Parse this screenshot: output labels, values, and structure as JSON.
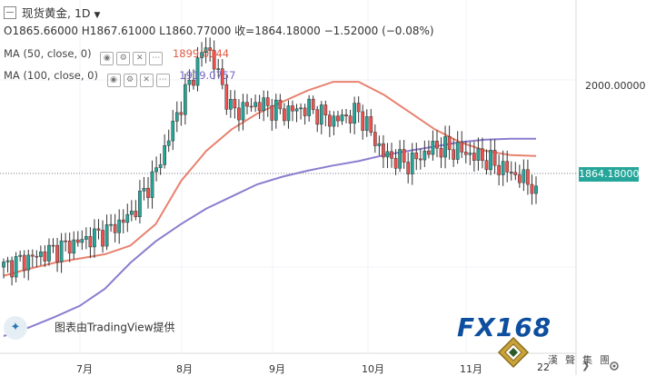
{
  "header": {
    "title": "现货黄金, 1D",
    "ohlc": "O1865.66000  H1867.61000  L1860.77000  收=1864.18000   −1.52000 (−0.08%)"
  },
  "indicators": [
    {
      "label": "MA (50, close, 0)",
      "value": "1899.0144",
      "color": "#e8826f"
    },
    {
      "label": "MA (100, close, 0)",
      "value": "1919.0757",
      "color": "#8c7ccf"
    }
  ],
  "price_axis": {
    "level_label": "2000.00000",
    "last_price": "1864.18000"
  },
  "time_axis": {
    "months": [
      "7月",
      "8月",
      "9月",
      "10月",
      "11月",
      "22"
    ]
  },
  "credit": "图表由TradingView提供",
  "watermark": {
    "brand": "FX168",
    "subtitle": "漢聲集團"
  },
  "colors": {
    "up": "#26a69a",
    "down": "#ef5350",
    "ma50": "#e8826f",
    "ma100": "#8c7ccf",
    "last_price": "#26a69a"
  },
  "chart_data": {
    "type": "line",
    "title": "现货黄金, 1D",
    "ylim": [
      1670,
      2080
    ],
    "grid": true,
    "series": [
      {
        "name": "MA (50, close, 0)",
        "values": [
          1760,
          1768,
          1775,
          1780,
          1785,
          1795,
          1820,
          1870,
          1905,
          1930,
          1948,
          1962,
          1975,
          1985,
          1985,
          1970,
          1950,
          1930,
          1915,
          1905,
          1900,
          1899
        ]
      },
      {
        "name": "MA (100, close, 0)",
        "values": [
          1690,
          1700,
          1712,
          1725,
          1745,
          1775,
          1800,
          1820,
          1838,
          1852,
          1866,
          1875,
          1882,
          1888,
          1893,
          1900,
          1905,
          1910,
          1915,
          1918,
          1919,
          1919
        ]
      },
      {
        "name": "现货黄金",
        "values": [
          1770,
          1780,
          1790,
          1800,
          1810,
          1830,
          1880,
          1960,
          2030,
          1950,
          1960,
          1950,
          1955,
          1940,
          1950,
          1900,
          1890,
          1910,
          1905,
          1895,
          1880,
          1864
        ]
      }
    ],
    "last_close": 1864.18
  }
}
